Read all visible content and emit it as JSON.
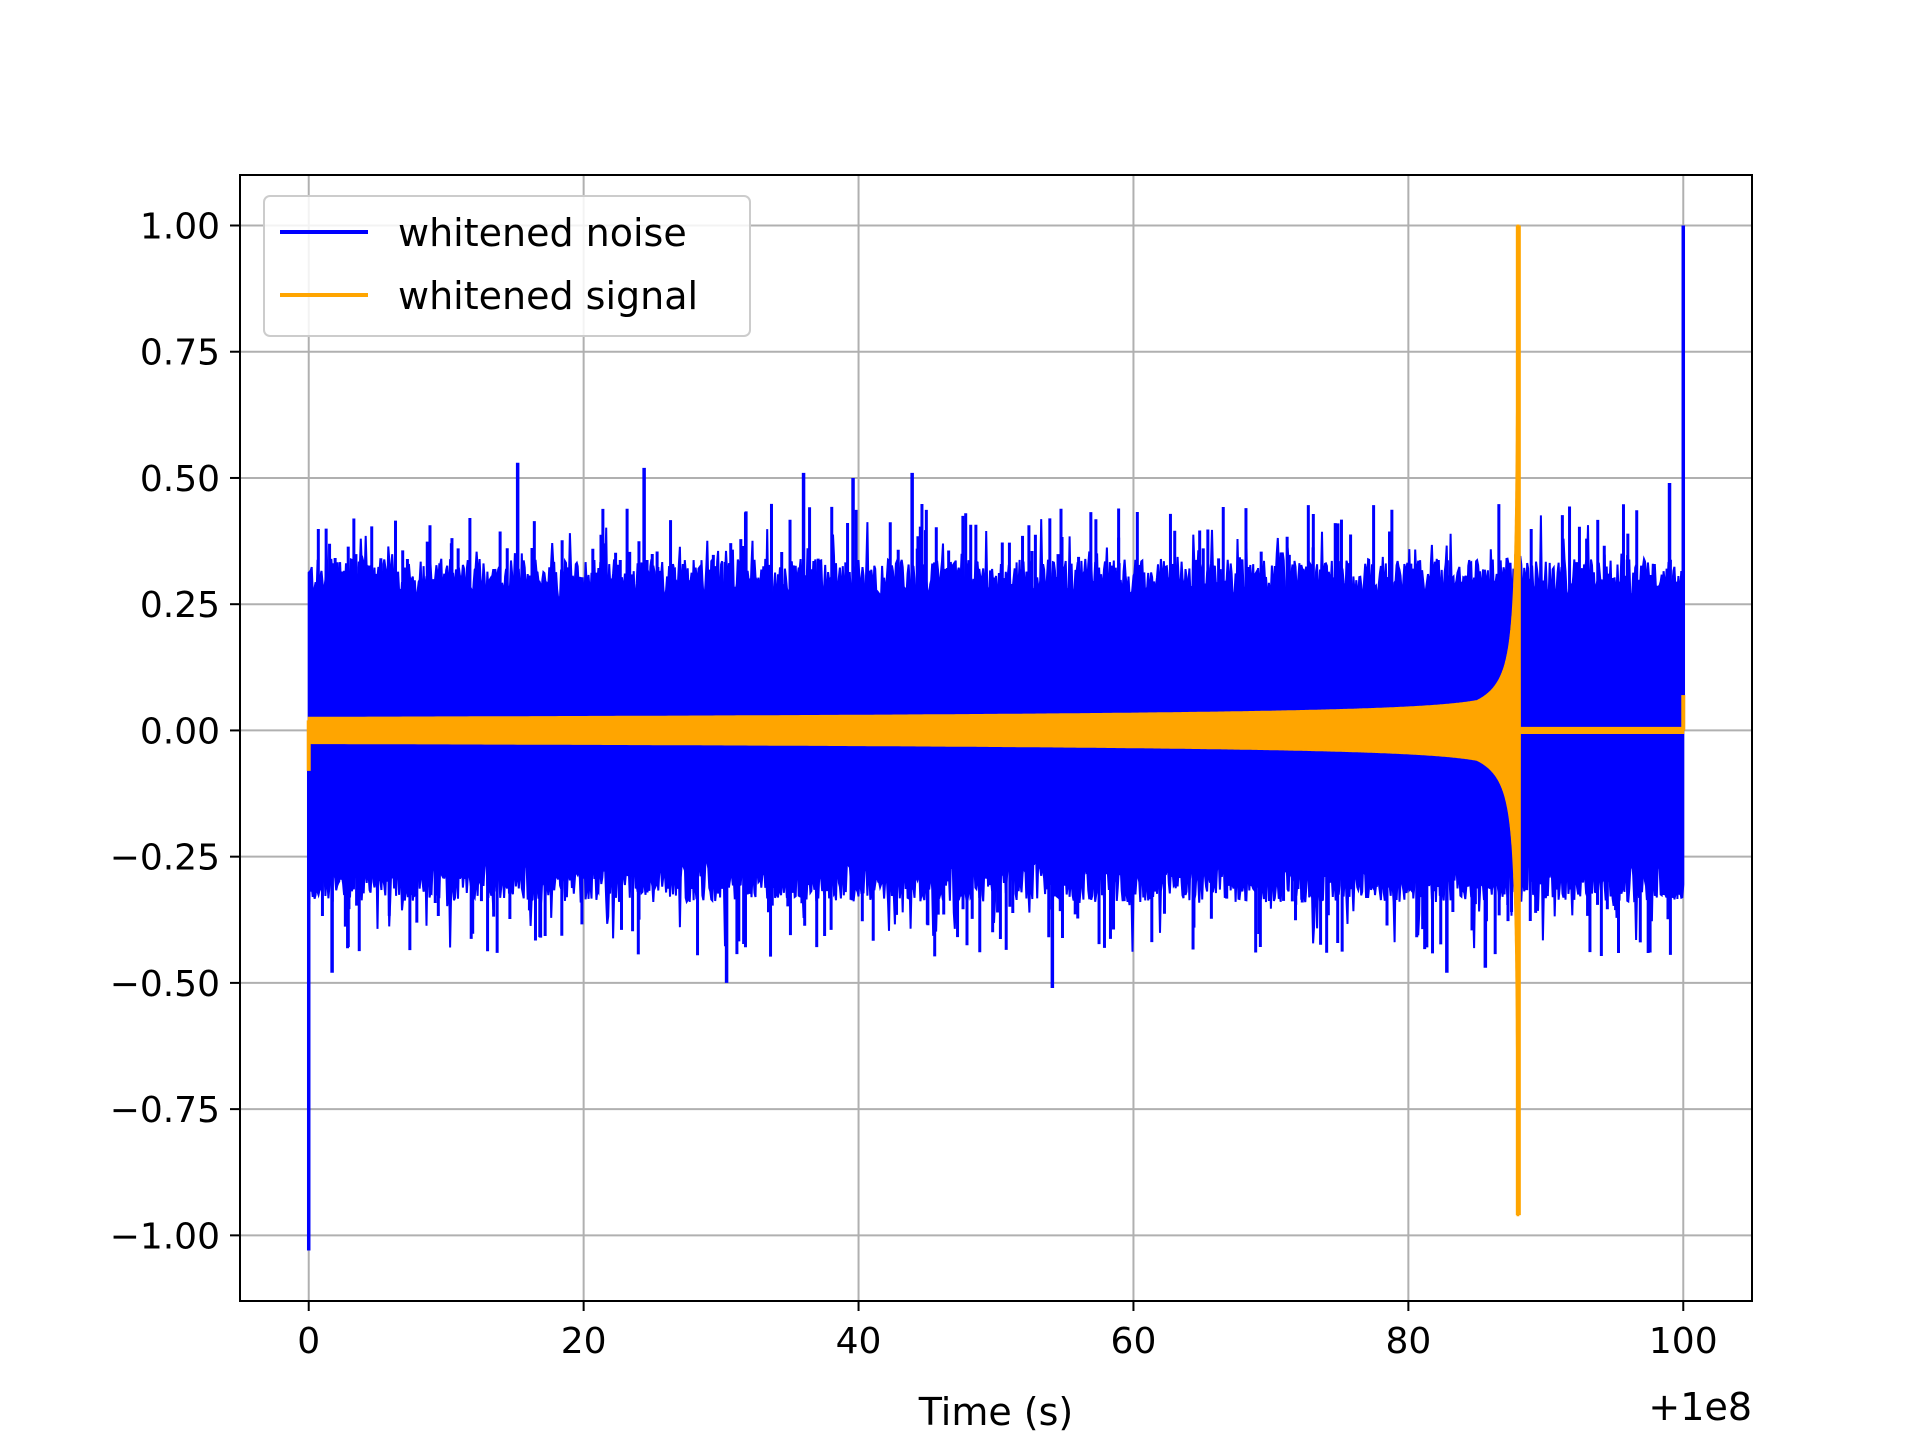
{
  "chart_data": {
    "type": "line",
    "title": "",
    "xlabel": "Time (s)",
    "ylabel": "",
    "x_offset_label": "+1e8",
    "x_offset": 100000000,
    "xlim": [
      -5,
      105
    ],
    "ylim": [
      -1.13,
      1.1
    ],
    "xticks": [
      0,
      20,
      40,
      60,
      80,
      100
    ],
    "xtick_labels": [
      "0",
      "20",
      "40",
      "60",
      "80",
      "100"
    ],
    "yticks": [
      1.0,
      0.75,
      0.5,
      0.25,
      0.0,
      -0.25,
      -0.5,
      -0.75,
      -1.0
    ],
    "ytick_labels": [
      "1.00",
      "0.75",
      "0.50",
      "0.25",
      "0.00",
      "−0.25",
      "−0.50",
      "−0.75",
      "−1.00"
    ],
    "grid": true,
    "legend_position": "top-left",
    "series": [
      {
        "name": "whitened noise",
        "color": "#0000ff",
        "description_values": {
          "x_range": [
            0,
            100
          ],
          "typical_envelope": [
            -0.33,
            0.33
          ],
          "spikes": [
            {
              "x": 0.0,
              "y": -1.03
            },
            {
              "x": 100.0,
              "y": 1.0
            },
            {
              "x": 15.2,
              "y": 0.53
            },
            {
              "x": 24.4,
              "y": 0.52
            },
            {
              "x": 30.4,
              "y": -0.5
            },
            {
              "x": 54.1,
              "y": -0.51
            },
            {
              "x": 43.9,
              "y": 0.51
            },
            {
              "x": 99.0,
              "y": 0.49
            },
            {
              "x": 1.7,
              "y": -0.48
            },
            {
              "x": 36.0,
              "y": 0.51
            },
            {
              "x": 39.6,
              "y": 0.5
            },
            {
              "x": 85.6,
              "y": -0.47
            },
            {
              "x": 82.8,
              "y": -0.48
            }
          ]
        }
      },
      {
        "name": "whitened signal",
        "color": "#ffa500",
        "description_values": {
          "x_range": [
            0,
            100
          ],
          "chirp_start": 0,
          "merger_time": 88.0,
          "initial_amplitude": 0.025,
          "peak_max": 1.0,
          "peak_min": -0.96,
          "post_merger_level": 0.0,
          "start_transient": -0.08,
          "end_transient": 0.07
        }
      }
    ]
  }
}
